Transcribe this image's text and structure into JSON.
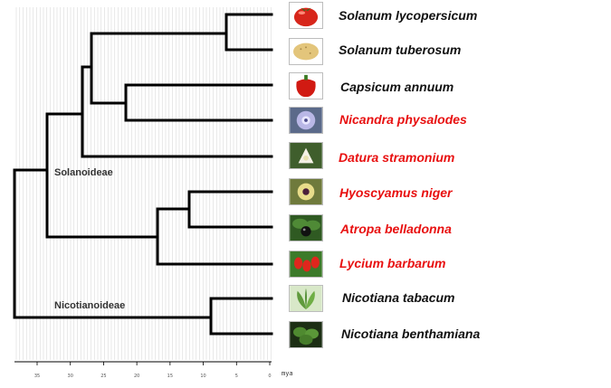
{
  "clades": {
    "solanoideae": "Solanoideae",
    "nicotianoideae": "Nicotianoideae"
  },
  "axis": {
    "unit": "mya",
    "ticks": [
      "35",
      "30",
      "25",
      "20",
      "15",
      "10",
      "5",
      "0"
    ]
  },
  "colors": {
    "model_species": "#111111",
    "highlighted_species": "#e81010",
    "branch": "#000000",
    "grid": "#d8d8d8"
  },
  "species": [
    {
      "name": "Solanum lycopersicum",
      "highlight": false,
      "icon": "tomato-icon"
    },
    {
      "name": "Solanum tuberosum",
      "highlight": false,
      "icon": "potato-icon"
    },
    {
      "name": "Capsicum annuum",
      "highlight": false,
      "icon": "pepper-icon"
    },
    {
      "name": "Nicandra physalodes",
      "highlight": true,
      "icon": "nicandra-flower-icon"
    },
    {
      "name": "Datura stramonium",
      "highlight": true,
      "icon": "datura-flower-icon"
    },
    {
      "name": "Hyoscyamus niger",
      "highlight": true,
      "icon": "hyoscyamus-flower-icon"
    },
    {
      "name": "Atropa belladonna",
      "highlight": true,
      "icon": "belladonna-berry-icon"
    },
    {
      "name": "Lycium barbarum",
      "highlight": true,
      "icon": "goji-berry-icon"
    },
    {
      "name": "Nicotiana tabacum",
      "highlight": false,
      "icon": "tobacco-plant-icon"
    },
    {
      "name": "Nicotiana benthamiana",
      "highlight": false,
      "icon": "benthamiana-plant-icon"
    }
  ]
}
